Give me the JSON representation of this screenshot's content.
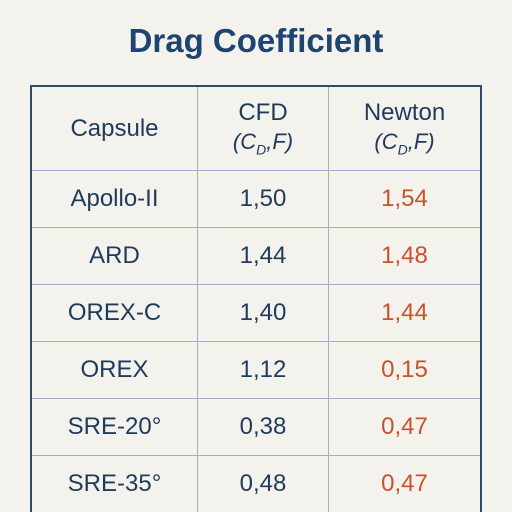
{
  "title": "Drag Coefficient",
  "table": {
    "header": [
      {
        "name": "Capsule"
      },
      {
        "name": "CFD",
        "symbol": [
          "(C",
          "D",
          ",F)"
        ]
      },
      {
        "name": "Newton",
        "symbol": [
          "(C",
          "D",
          ",F)"
        ]
      }
    ],
    "rows": [
      [
        "Apollo-II",
        "1,50",
        "1,54"
      ],
      [
        "ARD",
        "1,44",
        "1,48"
      ],
      [
        "OREX-C",
        "1,40",
        "1,44"
      ],
      [
        "OREX",
        "1,12",
        "0,15"
      ],
      [
        "SRE-20°",
        "0,38",
        "0,47"
      ],
      [
        "SRE-35°",
        "0,48",
        "0,47"
      ]
    ]
  }
}
